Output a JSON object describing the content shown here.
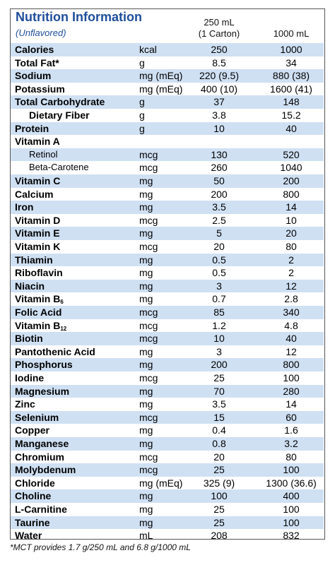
{
  "header": {
    "title": "Nutrition Information",
    "subtitle": "(Unflavored)",
    "col1_line1": "250 mL",
    "col1_line2": "(1 Carton)",
    "col2": "1000 mL"
  },
  "table": {
    "rows": [
      {
        "name": "Calories",
        "unit": "kcal",
        "serving": "250",
        "liter": "1000"
      },
      {
        "name": "Total Fat*",
        "unit": "g",
        "serving": "8.5",
        "liter": "34"
      },
      {
        "name": "Sodium",
        "unit": "mg (mEq)",
        "serving": "220 (9.5)",
        "liter": "880 (38)"
      },
      {
        "name": "Potassium",
        "unit": "mg (mEq)",
        "serving": "400 (10)",
        "liter": "1600 (41)"
      },
      {
        "name": "Total Carbohydrate",
        "unit": "g",
        "serving": "37",
        "liter": "148"
      },
      {
        "name": "Dietary Fiber",
        "unit": "g",
        "serving": "3.8",
        "liter": "15.2",
        "indent": true
      },
      {
        "name": "Protein",
        "unit": "g",
        "serving": "10",
        "liter": "40"
      },
      {
        "name": "Vitamin A"
      },
      {
        "name": "Retinol",
        "unit": "mcg",
        "serving": "130",
        "liter": "520",
        "indent": true,
        "bold": false
      },
      {
        "name": "Beta-Carotene",
        "unit": "mcg",
        "serving": "260",
        "liter": "1040",
        "indent": true,
        "bold": false
      },
      {
        "name": "Vitamin C",
        "unit": "mg",
        "serving": "50",
        "liter": "200"
      },
      {
        "name": "Calcium",
        "unit": "mg",
        "serving": "200",
        "liter": "800"
      },
      {
        "name": "Iron",
        "unit": "mg",
        "serving": "3.5",
        "liter": "14"
      },
      {
        "name": "Vitamin D",
        "unit": "mcg",
        "serving": "2.5",
        "liter": "10"
      },
      {
        "name": "Vitamin E",
        "unit": "mg",
        "serving": "5",
        "liter": "20"
      },
      {
        "name": "Vitamin K",
        "unit": "mcg",
        "serving": "20",
        "liter": "80"
      },
      {
        "name": "Thiamin",
        "unit": "mg",
        "serving": "0.5",
        "liter": "2"
      },
      {
        "name": "Riboflavin",
        "unit": "mg",
        "serving": "0.5",
        "liter": "2"
      },
      {
        "name": "Niacin",
        "unit": "mg",
        "serving": "3",
        "liter": "12"
      },
      {
        "name": "Vitamin B",
        "sub": "6",
        "unit": "mg",
        "serving": "0.7",
        "liter": "2.8"
      },
      {
        "name": "Folic Acid",
        "unit": "mcg",
        "serving": "85",
        "liter": "340"
      },
      {
        "name": "Vitamin B",
        "sub": "12",
        "unit": "mcg",
        "serving": "1.2",
        "liter": "4.8"
      },
      {
        "name": "Biotin",
        "unit": "mcg",
        "serving": "10",
        "liter": "40"
      },
      {
        "name": "Pantothenic Acid",
        "unit": "mg",
        "serving": "3",
        "liter": "12"
      },
      {
        "name": "Phosphorus",
        "unit": "mg",
        "serving": "200",
        "liter": "800"
      },
      {
        "name": "Iodine",
        "unit": "mcg",
        "serving": "25",
        "liter": "100"
      },
      {
        "name": "Magnesium",
        "unit": "mg",
        "serving": "70",
        "liter": "280"
      },
      {
        "name": "Zinc",
        "unit": "mg",
        "serving": "3.5",
        "liter": "14"
      },
      {
        "name": "Selenium",
        "unit": "mcg",
        "serving": "15",
        "liter": "60"
      },
      {
        "name": "Copper",
        "unit": "mg",
        "serving": "0.4",
        "liter": "1.6"
      },
      {
        "name": "Manganese",
        "unit": "mg",
        "serving": "0.8",
        "liter": "3.2"
      },
      {
        "name": "Chromium",
        "unit": "mcg",
        "serving": "20",
        "liter": "80"
      },
      {
        "name": "Molybdenum",
        "unit": "mcg",
        "serving": "25",
        "liter": "100"
      },
      {
        "name": "Chloride",
        "unit": "mg (mEq)",
        "serving": "325 (9)",
        "liter": "1300 (36.6)"
      },
      {
        "name": "Choline",
        "unit": "mg",
        "serving": "100",
        "liter": "400"
      },
      {
        "name": "L-Carnitine",
        "unit": "mg",
        "serving": "25",
        "liter": "100"
      },
      {
        "name": "Taurine",
        "unit": "mg",
        "serving": "25",
        "liter": "100"
      },
      {
        "name": "Water",
        "unit": "mL",
        "serving": "208",
        "liter": "832"
      }
    ]
  },
  "footnote": "*MCT provides 1.7 g/250 mL and 6.8 g/1000 mL"
}
